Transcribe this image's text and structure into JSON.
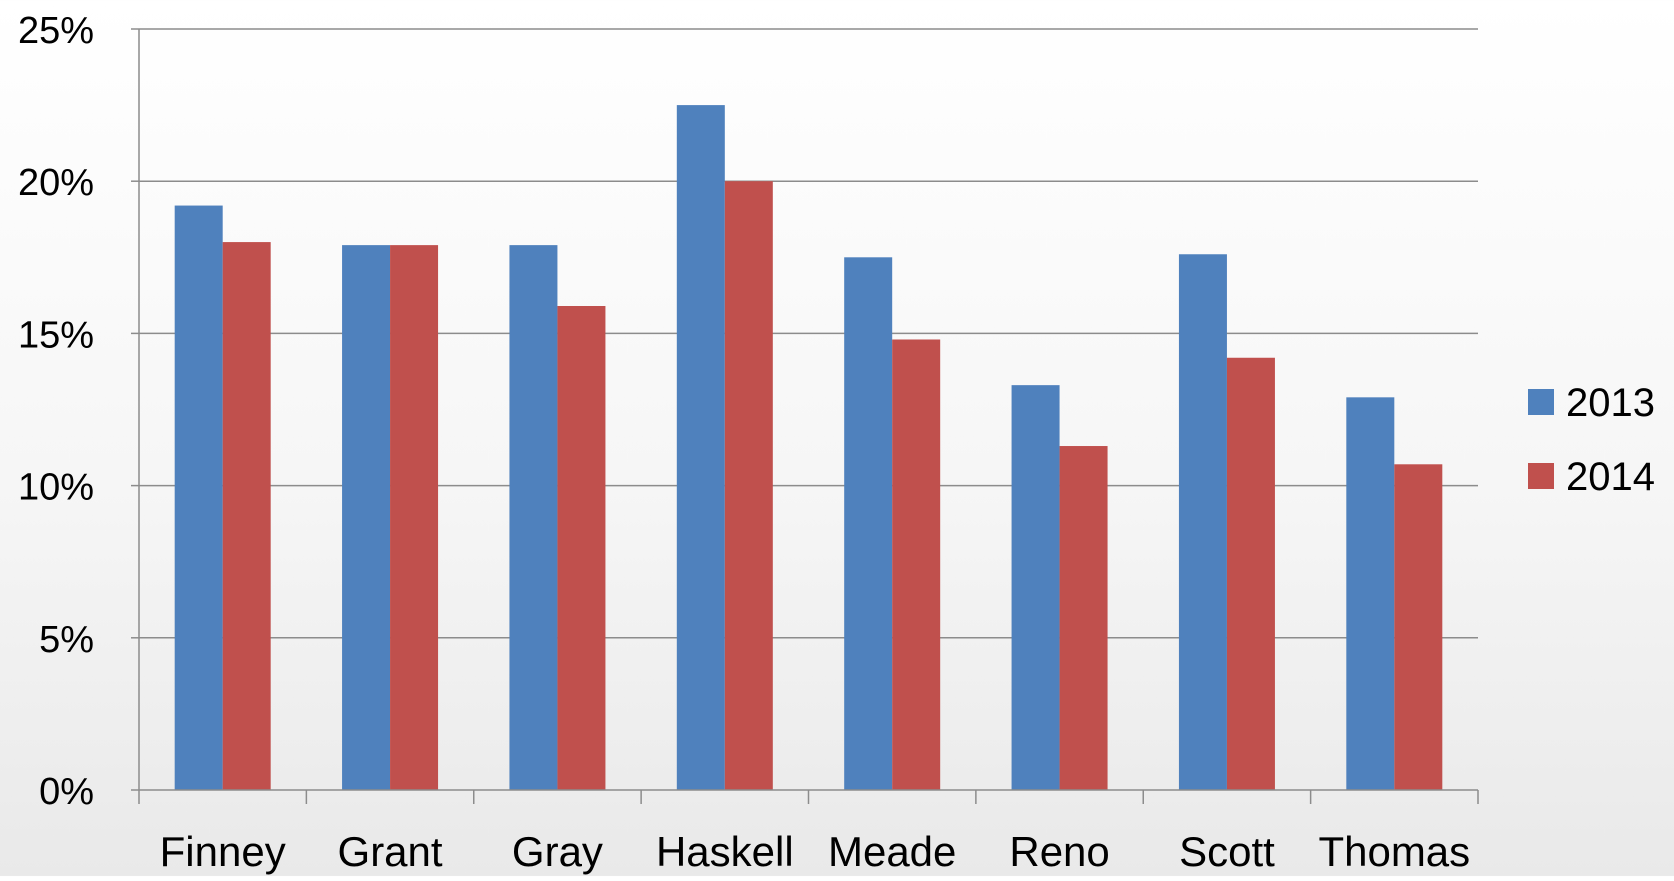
{
  "chart_data": {
    "type": "bar",
    "title": "",
    "xlabel": "",
    "ylabel": "",
    "categories": [
      "Finney",
      "Grant",
      "Gray",
      "Haskell",
      "Meade",
      "Reno",
      "Scott",
      "Thomas"
    ],
    "series": [
      {
        "name": "2013",
        "color": "#4f81bd",
        "values": [
          19.2,
          17.9,
          17.9,
          22.5,
          17.5,
          13.3,
          17.6,
          12.9
        ]
      },
      {
        "name": "2014",
        "color": "#c0504d",
        "values": [
          18.0,
          17.9,
          15.9,
          20.0,
          14.8,
          11.3,
          14.2,
          10.7
        ]
      }
    ],
    "ylim": [
      0,
      25
    ],
    "yticks": [
      0,
      5,
      10,
      15,
      20,
      25
    ],
    "ytick_labels": [
      "0%",
      "5%",
      "10%",
      "15%",
      "20%",
      "25%"
    ],
    "grid": true,
    "legend_position": "right"
  }
}
